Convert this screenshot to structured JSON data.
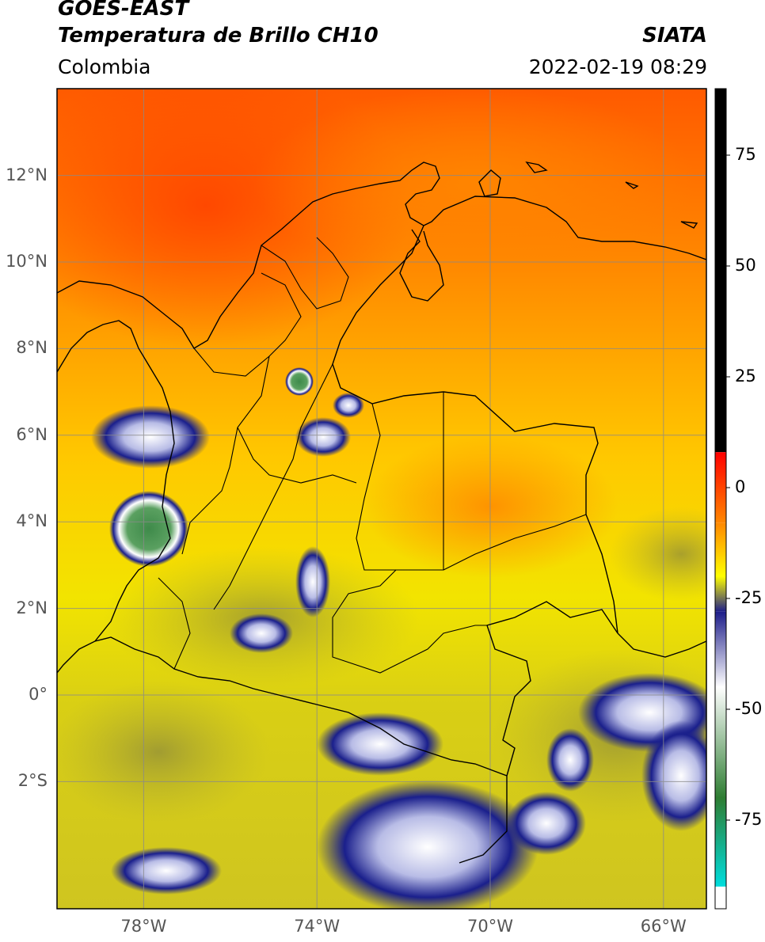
{
  "header": {
    "title_line1": "GOES-EAST",
    "title_line2": "Temperatura de Brillo CH10",
    "agency": "SIATA",
    "region": "Colombia",
    "timestamp": "2022-02-19 08:29"
  },
  "map": {
    "type": "satellite-brightness-temperature",
    "lon_range": [
      -80,
      -65
    ],
    "lat_range": [
      -5,
      14
    ],
    "lat_ticks": [
      {
        "value": 12,
        "label": "12°N"
      },
      {
        "value": 10,
        "label": "10°N"
      },
      {
        "value": 8,
        "label": "8°N"
      },
      {
        "value": 6,
        "label": "6°N"
      },
      {
        "value": 4,
        "label": "4°N"
      },
      {
        "value": 2,
        "label": "2°N"
      },
      {
        "value": 0,
        "label": "0°"
      },
      {
        "value": -2,
        "label": "2°S"
      }
    ],
    "lon_ticks": [
      {
        "value": -78,
        "label": "78°W"
      },
      {
        "value": -74,
        "label": "74°W"
      },
      {
        "value": -70,
        "label": "70°W"
      },
      {
        "value": -66,
        "label": "66°W"
      }
    ],
    "gridlines": true,
    "background_color": "#ff8a00",
    "cold_cloud_color": "#1a1f8c"
  },
  "colorbar": {
    "range": [
      -95,
      90
    ],
    "ticks": [
      {
        "value": 75,
        "label": "75"
      },
      {
        "value": 50,
        "label": "50"
      },
      {
        "value": 25,
        "label": "25"
      },
      {
        "value": 0,
        "label": "0"
      },
      {
        "value": -25,
        "label": "-25"
      },
      {
        "value": -50,
        "label": "-50"
      },
      {
        "value": -75,
        "label": "-75"
      }
    ],
    "segments": [
      {
        "from": 8,
        "to": 90,
        "color": "#000000"
      },
      {
        "from": -8,
        "to": 8,
        "colors": [
          "#ff8800",
          "#ff0000"
        ]
      },
      {
        "from": -20,
        "to": -8,
        "colors": [
          "#ffff00",
          "#ff8800"
        ]
      },
      {
        "from": -28,
        "to": -20,
        "colors": [
          "#1e1e8a",
          "#ffff00"
        ]
      },
      {
        "from": -45,
        "to": -28,
        "colors": [
          "#ffffff",
          "#1e1e8a"
        ]
      },
      {
        "from": -70,
        "to": -45,
        "colors": [
          "#2e7d32",
          "#ffffff"
        ]
      },
      {
        "from": -90,
        "to": -70,
        "colors": [
          "#00dddd",
          "#2e7d32"
        ]
      },
      {
        "from": -95,
        "to": -90,
        "color": "#ffffff"
      }
    ]
  }
}
